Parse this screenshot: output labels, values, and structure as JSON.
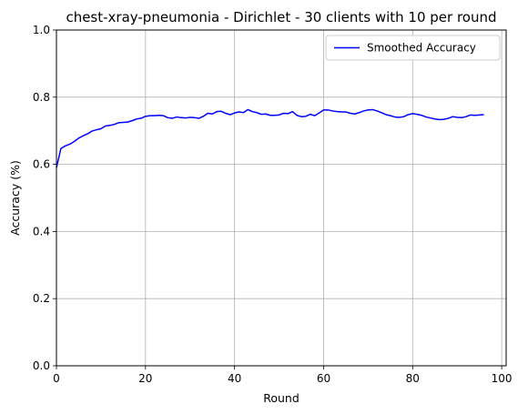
{
  "chart_data": {
    "type": "line",
    "title": "chest-xray-pneumonia - Dirichlet - 30 clients with 10 per round",
    "xlabel": "Round",
    "ylabel": "Accuracy (%)",
    "xlim": [
      0,
      101
    ],
    "ylim": [
      0.0,
      1.0
    ],
    "xticks": [
      0,
      20,
      40,
      60,
      80,
      100
    ],
    "xtick_labels": [
      "0",
      "20",
      "40",
      "60",
      "80",
      "100"
    ],
    "yticks": [
      0.0,
      0.2,
      0.4,
      0.6,
      0.8,
      1.0
    ],
    "ytick_labels": [
      "0.0",
      "0.2",
      "0.4",
      "0.6",
      "0.8",
      "1.0"
    ],
    "grid": true,
    "legend_position": "top-right",
    "series": [
      {
        "name": "Smoothed Accuracy",
        "color": "#0000ff",
        "x": [
          0,
          1,
          2,
          3,
          4,
          5,
          6,
          7,
          8,
          9,
          10,
          11,
          12,
          13,
          14,
          15,
          16,
          17,
          18,
          19,
          20,
          21,
          22,
          23,
          24,
          25,
          26,
          27,
          28,
          29,
          30,
          31,
          32,
          33,
          34,
          35,
          36,
          37,
          38,
          39,
          40,
          41,
          42,
          43,
          44,
          45,
          46,
          47,
          48,
          49,
          50,
          51,
          52,
          53,
          54,
          55,
          56,
          57,
          58,
          59,
          60,
          61,
          62,
          63,
          64,
          65,
          66,
          67,
          68,
          69,
          70,
          71,
          72,
          73,
          74,
          75,
          76,
          77,
          78,
          79,
          80,
          81,
          82,
          83,
          84,
          85,
          86,
          87,
          88,
          89,
          90,
          91,
          92,
          93,
          94,
          95,
          96
        ],
        "y": [
          0.59,
          0.647,
          0.655,
          0.66,
          0.668,
          0.678,
          0.685,
          0.691,
          0.699,
          0.703,
          0.706,
          0.714,
          0.716,
          0.719,
          0.724,
          0.725,
          0.726,
          0.73,
          0.735,
          0.737,
          0.743,
          0.745,
          0.745,
          0.746,
          0.745,
          0.739,
          0.737,
          0.741,
          0.739,
          0.738,
          0.74,
          0.739,
          0.737,
          0.743,
          0.752,
          0.75,
          0.757,
          0.758,
          0.752,
          0.748,
          0.753,
          0.756,
          0.754,
          0.763,
          0.757,
          0.754,
          0.749,
          0.75,
          0.746,
          0.746,
          0.747,
          0.752,
          0.751,
          0.757,
          0.746,
          0.742,
          0.743,
          0.749,
          0.745,
          0.753,
          0.762,
          0.762,
          0.759,
          0.757,
          0.756,
          0.756,
          0.752,
          0.75,
          0.754,
          0.759,
          0.762,
          0.763,
          0.759,
          0.754,
          0.748,
          0.745,
          0.741,
          0.74,
          0.742,
          0.748,
          0.751,
          0.749,
          0.746,
          0.741,
          0.738,
          0.735,
          0.733,
          0.734,
          0.737,
          0.742,
          0.74,
          0.739,
          0.742,
          0.747,
          0.746,
          0.747,
          0.748
        ]
      }
    ]
  }
}
